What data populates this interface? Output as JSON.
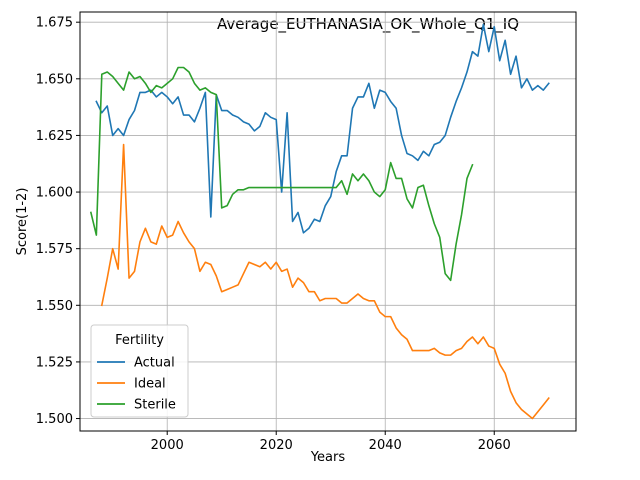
{
  "chart_data": {
    "type": "line",
    "title": "Average_EUTHANASIA_OK_Whole_Q1_IQ",
    "xlabel": "Years",
    "ylabel": "Score(1-2)",
    "xlim": [
      1984,
      2075
    ],
    "ylim": [
      1.4945,
      1.6795
    ],
    "grid": true,
    "legend": {
      "title": "Fertility",
      "placement": "lower-left"
    },
    "x_ticks": [
      2000,
      2020,
      2040,
      2060
    ],
    "y_ticks": [
      1.5,
      1.525,
      1.55,
      1.575,
      1.6,
      1.625,
      1.65,
      1.675
    ],
    "series": [
      {
        "name": "Actual",
        "color": "#1f77b4",
        "points": [
          [
            1987,
            1.64
          ],
          [
            1988,
            1.635
          ],
          [
            1989,
            1.638
          ],
          [
            1990,
            1.625
          ],
          [
            1991,
            1.628
          ],
          [
            1992,
            1.625
          ],
          [
            1993,
            1.632
          ],
          [
            1994,
            1.636
          ],
          [
            1995,
            1.644
          ],
          [
            1996,
            1.644
          ],
          [
            1997,
            1.645
          ],
          [
            1998,
            1.642
          ],
          [
            1999,
            1.644
          ],
          [
            2000,
            1.642
          ],
          [
            2001,
            1.639
          ],
          [
            2002,
            1.642
          ],
          [
            2003,
            1.634
          ],
          [
            2004,
            1.634
          ],
          [
            2005,
            1.631
          ],
          [
            2006,
            1.637
          ],
          [
            2007,
            1.644
          ],
          [
            2008,
            1.589
          ],
          [
            2009,
            1.643
          ],
          [
            2010,
            1.636
          ],
          [
            2011,
            1.636
          ],
          [
            2012,
            1.634
          ],
          [
            2013,
            1.633
          ],
          [
            2014,
            1.631
          ],
          [
            2015,
            1.63
          ],
          [
            2016,
            1.627
          ],
          [
            2017,
            1.629
          ],
          [
            2018,
            1.635
          ],
          [
            2019,
            1.633
          ],
          [
            2020,
            1.632
          ],
          [
            2021,
            1.6
          ],
          [
            2022,
            1.635
          ],
          [
            2023,
            1.587
          ],
          [
            2024,
            1.591
          ],
          [
            2025,
            1.582
          ],
          [
            2026,
            1.584
          ],
          [
            2027,
            1.588
          ],
          [
            2028,
            1.587
          ],
          [
            2029,
            1.594
          ],
          [
            2030,
            1.598
          ],
          [
            2031,
            1.609
          ],
          [
            2032,
            1.616
          ],
          [
            2033,
            1.616
          ],
          [
            2034,
            1.637
          ],
          [
            2035,
            1.642
          ],
          [
            2036,
            1.642
          ],
          [
            2037,
            1.648
          ],
          [
            2038,
            1.637
          ],
          [
            2039,
            1.645
          ],
          [
            2040,
            1.644
          ],
          [
            2041,
            1.64
          ],
          [
            2042,
            1.637
          ],
          [
            2043,
            1.625
          ],
          [
            2044,
            1.617
          ],
          [
            2045,
            1.616
          ],
          [
            2046,
            1.614
          ],
          [
            2047,
            1.618
          ],
          [
            2048,
            1.616
          ],
          [
            2049,
            1.621
          ],
          [
            2050,
            1.622
          ],
          [
            2051,
            1.625
          ],
          [
            2052,
            1.633
          ],
          [
            2053,
            1.64
          ],
          [
            2054,
            1.646
          ],
          [
            2055,
            1.653
          ],
          [
            2056,
            1.662
          ],
          [
            2057,
            1.66
          ],
          [
            2058,
            1.674
          ],
          [
            2059,
            1.662
          ],
          [
            2060,
            1.673
          ],
          [
            2061,
            1.658
          ],
          [
            2062,
            1.667
          ],
          [
            2063,
            1.652
          ],
          [
            2064,
            1.66
          ],
          [
            2065,
            1.646
          ],
          [
            2066,
            1.65
          ],
          [
            2067,
            1.645
          ],
          [
            2068,
            1.647
          ],
          [
            2069,
            1.645
          ],
          [
            2070,
            1.648
          ]
        ]
      },
      {
        "name": "Ideal",
        "color": "#ff7f0e",
        "points": [
          [
            1988,
            1.55
          ],
          [
            1989,
            1.562
          ],
          [
            1990,
            1.575
          ],
          [
            1991,
            1.566
          ],
          [
            1992,
            1.621
          ],
          [
            1993,
            1.562
          ],
          [
            1994,
            1.565
          ],
          [
            1995,
            1.578
          ],
          [
            1996,
            1.584
          ],
          [
            1997,
            1.578
          ],
          [
            1998,
            1.577
          ],
          [
            1999,
            1.585
          ],
          [
            2000,
            1.58
          ],
          [
            2001,
            1.581
          ],
          [
            2002,
            1.587
          ],
          [
            2003,
            1.582
          ],
          [
            2004,
            1.578
          ],
          [
            2005,
            1.575
          ],
          [
            2006,
            1.565
          ],
          [
            2007,
            1.569
          ],
          [
            2008,
            1.568
          ],
          [
            2009,
            1.563
          ],
          [
            2010,
            1.556
          ],
          [
            2011,
            1.557
          ],
          [
            2012,
            1.558
          ],
          [
            2013,
            1.559
          ],
          [
            2014,
            1.564
          ],
          [
            2015,
            1.569
          ],
          [
            2016,
            1.568
          ],
          [
            2017,
            1.567
          ],
          [
            2018,
            1.569
          ],
          [
            2019,
            1.566
          ],
          [
            2020,
            1.569
          ],
          [
            2021,
            1.565
          ],
          [
            2022,
            1.566
          ],
          [
            2023,
            1.558
          ],
          [
            2024,
            1.562
          ],
          [
            2025,
            1.56
          ],
          [
            2026,
            1.556
          ],
          [
            2027,
            1.556
          ],
          [
            2028,
            1.552
          ],
          [
            2029,
            1.553
          ],
          [
            2030,
            1.553
          ],
          [
            2031,
            1.553
          ],
          [
            2032,
            1.551
          ],
          [
            2033,
            1.551
          ],
          [
            2034,
            1.553
          ],
          [
            2035,
            1.555
          ],
          [
            2036,
            1.553
          ],
          [
            2037,
            1.552
          ],
          [
            2038,
            1.552
          ],
          [
            2039,
            1.547
          ],
          [
            2040,
            1.545
          ],
          [
            2041,
            1.545
          ],
          [
            2042,
            1.54
          ],
          [
            2043,
            1.537
          ],
          [
            2044,
            1.535
          ],
          [
            2045,
            1.53
          ],
          [
            2046,
            1.53
          ],
          [
            2047,
            1.53
          ],
          [
            2048,
            1.53
          ],
          [
            2049,
            1.531
          ],
          [
            2050,
            1.529
          ],
          [
            2051,
            1.528
          ],
          [
            2052,
            1.528
          ],
          [
            2053,
            1.53
          ],
          [
            2054,
            1.531
          ],
          [
            2055,
            1.534
          ],
          [
            2056,
            1.536
          ],
          [
            2057,
            1.533
          ],
          [
            2058,
            1.536
          ],
          [
            2059,
            1.532
          ],
          [
            2060,
            1.531
          ],
          [
            2061,
            1.524
          ],
          [
            2062,
            1.52
          ],
          [
            2063,
            1.512
          ],
          [
            2064,
            1.507
          ],
          [
            2065,
            1.504
          ],
          [
            2066,
            1.502
          ],
          [
            2067,
            1.5
          ],
          [
            2068,
            1.503
          ],
          [
            2069,
            1.506
          ],
          [
            2070,
            1.509
          ]
        ]
      },
      {
        "name": "Sterile",
        "color": "#2ca02c",
        "points": [
          [
            1986,
            1.591
          ],
          [
            1987,
            1.581
          ],
          [
            1988,
            1.652
          ],
          [
            1989,
            1.653
          ],
          [
            1990,
            1.651
          ],
          [
            1991,
            1.648
          ],
          [
            1992,
            1.645
          ],
          [
            1993,
            1.653
          ],
          [
            1994,
            1.65
          ],
          [
            1995,
            1.651
          ],
          [
            1996,
            1.648
          ],
          [
            1997,
            1.644
          ],
          [
            1998,
            1.647
          ],
          [
            1999,
            1.646
          ],
          [
            2000,
            1.648
          ],
          [
            2001,
            1.65
          ],
          [
            2002,
            1.655
          ],
          [
            2003,
            1.655
          ],
          [
            2004,
            1.653
          ],
          [
            2005,
            1.648
          ],
          [
            2006,
            1.645
          ],
          [
            2007,
            1.646
          ],
          [
            2008,
            1.644
          ],
          [
            2009,
            1.643
          ],
          [
            2010,
            1.593
          ],
          [
            2011,
            1.594
          ],
          [
            2012,
            1.599
          ],
          [
            2013,
            1.601
          ],
          [
            2014,
            1.601
          ],
          [
            2015,
            1.602
          ],
          [
            2016,
            1.602
          ],
          [
            2017,
            1.602
          ],
          [
            2018,
            1.602
          ],
          [
            2019,
            1.602
          ],
          [
            2020,
            1.602
          ],
          [
            2021,
            1.602
          ],
          [
            2022,
            1.602
          ],
          [
            2023,
            1.602
          ],
          [
            2024,
            1.602
          ],
          [
            2025,
            1.602
          ],
          [
            2026,
            1.602
          ],
          [
            2027,
            1.602
          ],
          [
            2028,
            1.602
          ],
          [
            2029,
            1.602
          ],
          [
            2030,
            1.602
          ],
          [
            2031,
            1.602
          ],
          [
            2032,
            1.605
          ],
          [
            2033,
            1.599
          ],
          [
            2034,
            1.608
          ],
          [
            2035,
            1.605
          ],
          [
            2036,
            1.608
          ],
          [
            2037,
            1.605
          ],
          [
            2038,
            1.6
          ],
          [
            2039,
            1.598
          ],
          [
            2040,
            1.601
          ],
          [
            2041,
            1.613
          ],
          [
            2042,
            1.606
          ],
          [
            2043,
            1.606
          ],
          [
            2044,
            1.597
          ],
          [
            2045,
            1.593
          ],
          [
            2046,
            1.602
          ],
          [
            2047,
            1.603
          ],
          [
            2048,
            1.594
          ],
          [
            2049,
            1.586
          ],
          [
            2050,
            1.58
          ],
          [
            2051,
            1.564
          ],
          [
            2052,
            1.561
          ],
          [
            2053,
            1.577
          ],
          [
            2054,
            1.59
          ],
          [
            2055,
            1.606
          ],
          [
            2056,
            1.612
          ]
        ]
      }
    ]
  }
}
